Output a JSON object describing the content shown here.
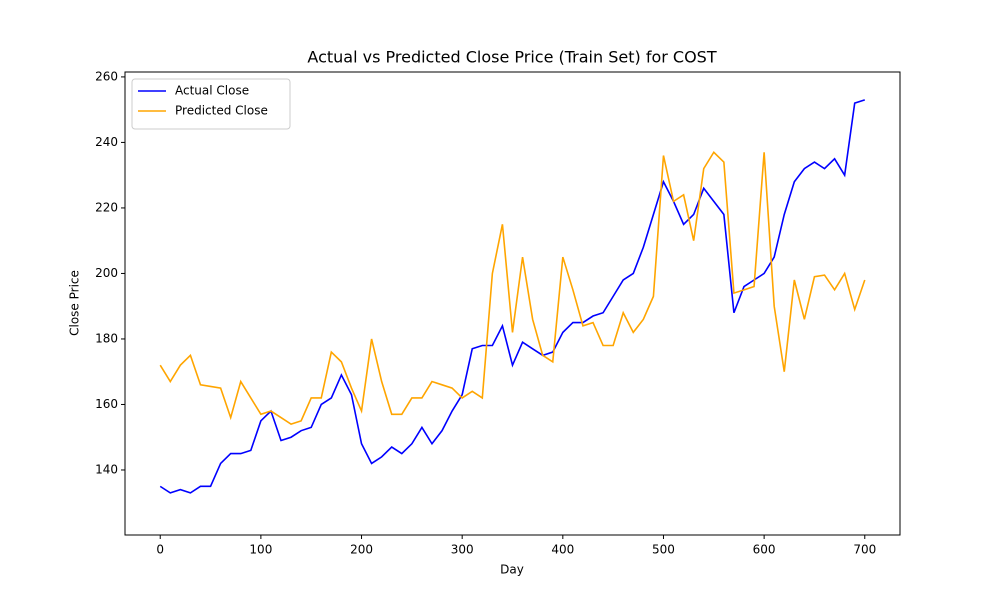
{
  "chart_data": {
    "type": "line",
    "title": "Actual vs Predicted Close Price (Train Set) for COST",
    "x_label": "Day",
    "y_label": "Close Price",
    "x": [
      0,
      10,
      20,
      30,
      40,
      50,
      60,
      70,
      80,
      90,
      100,
      110,
      120,
      130,
      140,
      150,
      160,
      170,
      180,
      190,
      200,
      210,
      220,
      230,
      240,
      250,
      260,
      270,
      280,
      290,
      300,
      310,
      320,
      330,
      340,
      350,
      360,
      370,
      380,
      390,
      400,
      410,
      420,
      430,
      440,
      450,
      460,
      470,
      480,
      490,
      500,
      510,
      520,
      530,
      540,
      550,
      560,
      570,
      580,
      590,
      600,
      610,
      620,
      630,
      640,
      650,
      660,
      670,
      680,
      690,
      700
    ],
    "series": [
      {
        "name": "Actual Close",
        "color": "#0000ff",
        "values": [
          135,
          133,
          134,
          133,
          135,
          135,
          142,
          145,
          145,
          146,
          155,
          158,
          149,
          150,
          152,
          153,
          160,
          162,
          169,
          163,
          148,
          142,
          144,
          147,
          145,
          148,
          153,
          148,
          152,
          158,
          163,
          177,
          178,
          178,
          184,
          172,
          179,
          177,
          175,
          176,
          182,
          185,
          185,
          187,
          188,
          193,
          198,
          200,
          208,
          218,
          228,
          222,
          215,
          218,
          226,
          222,
          218,
          188,
          196,
          198,
          200,
          205,
          218,
          228,
          232,
          234,
          232,
          235,
          230,
          252,
          253
        ]
      },
      {
        "name": "Predicted Close",
        "color": "#ffa500",
        "values": [
          172,
          167,
          172,
          175,
          166,
          165.5,
          165,
          156,
          167,
          162,
          157,
          158,
          156,
          154,
          155,
          162,
          162,
          176,
          173,
          165,
          158,
          180,
          167,
          157,
          157,
          162,
          162,
          167,
          166,
          165,
          162,
          164,
          162,
          200,
          215,
          182,
          205,
          186,
          175,
          173,
          205,
          195,
          184,
          185,
          178,
          178,
          188,
          182,
          186,
          193,
          236,
          222,
          224,
          210,
          232,
          237,
          234,
          194,
          195,
          196,
          237,
          190,
          170,
          198,
          186,
          199,
          199.5,
          195,
          200,
          189,
          198
        ]
      }
    ],
    "xlim": [
      -35,
      735
    ],
    "ylim": [
      120.15,
      261.5
    ],
    "xticks": [
      0,
      100,
      200,
      300,
      400,
      500,
      600,
      700
    ],
    "yticks": [
      140,
      160,
      180,
      200,
      220,
      240,
      260
    ],
    "legend": "upper left"
  }
}
